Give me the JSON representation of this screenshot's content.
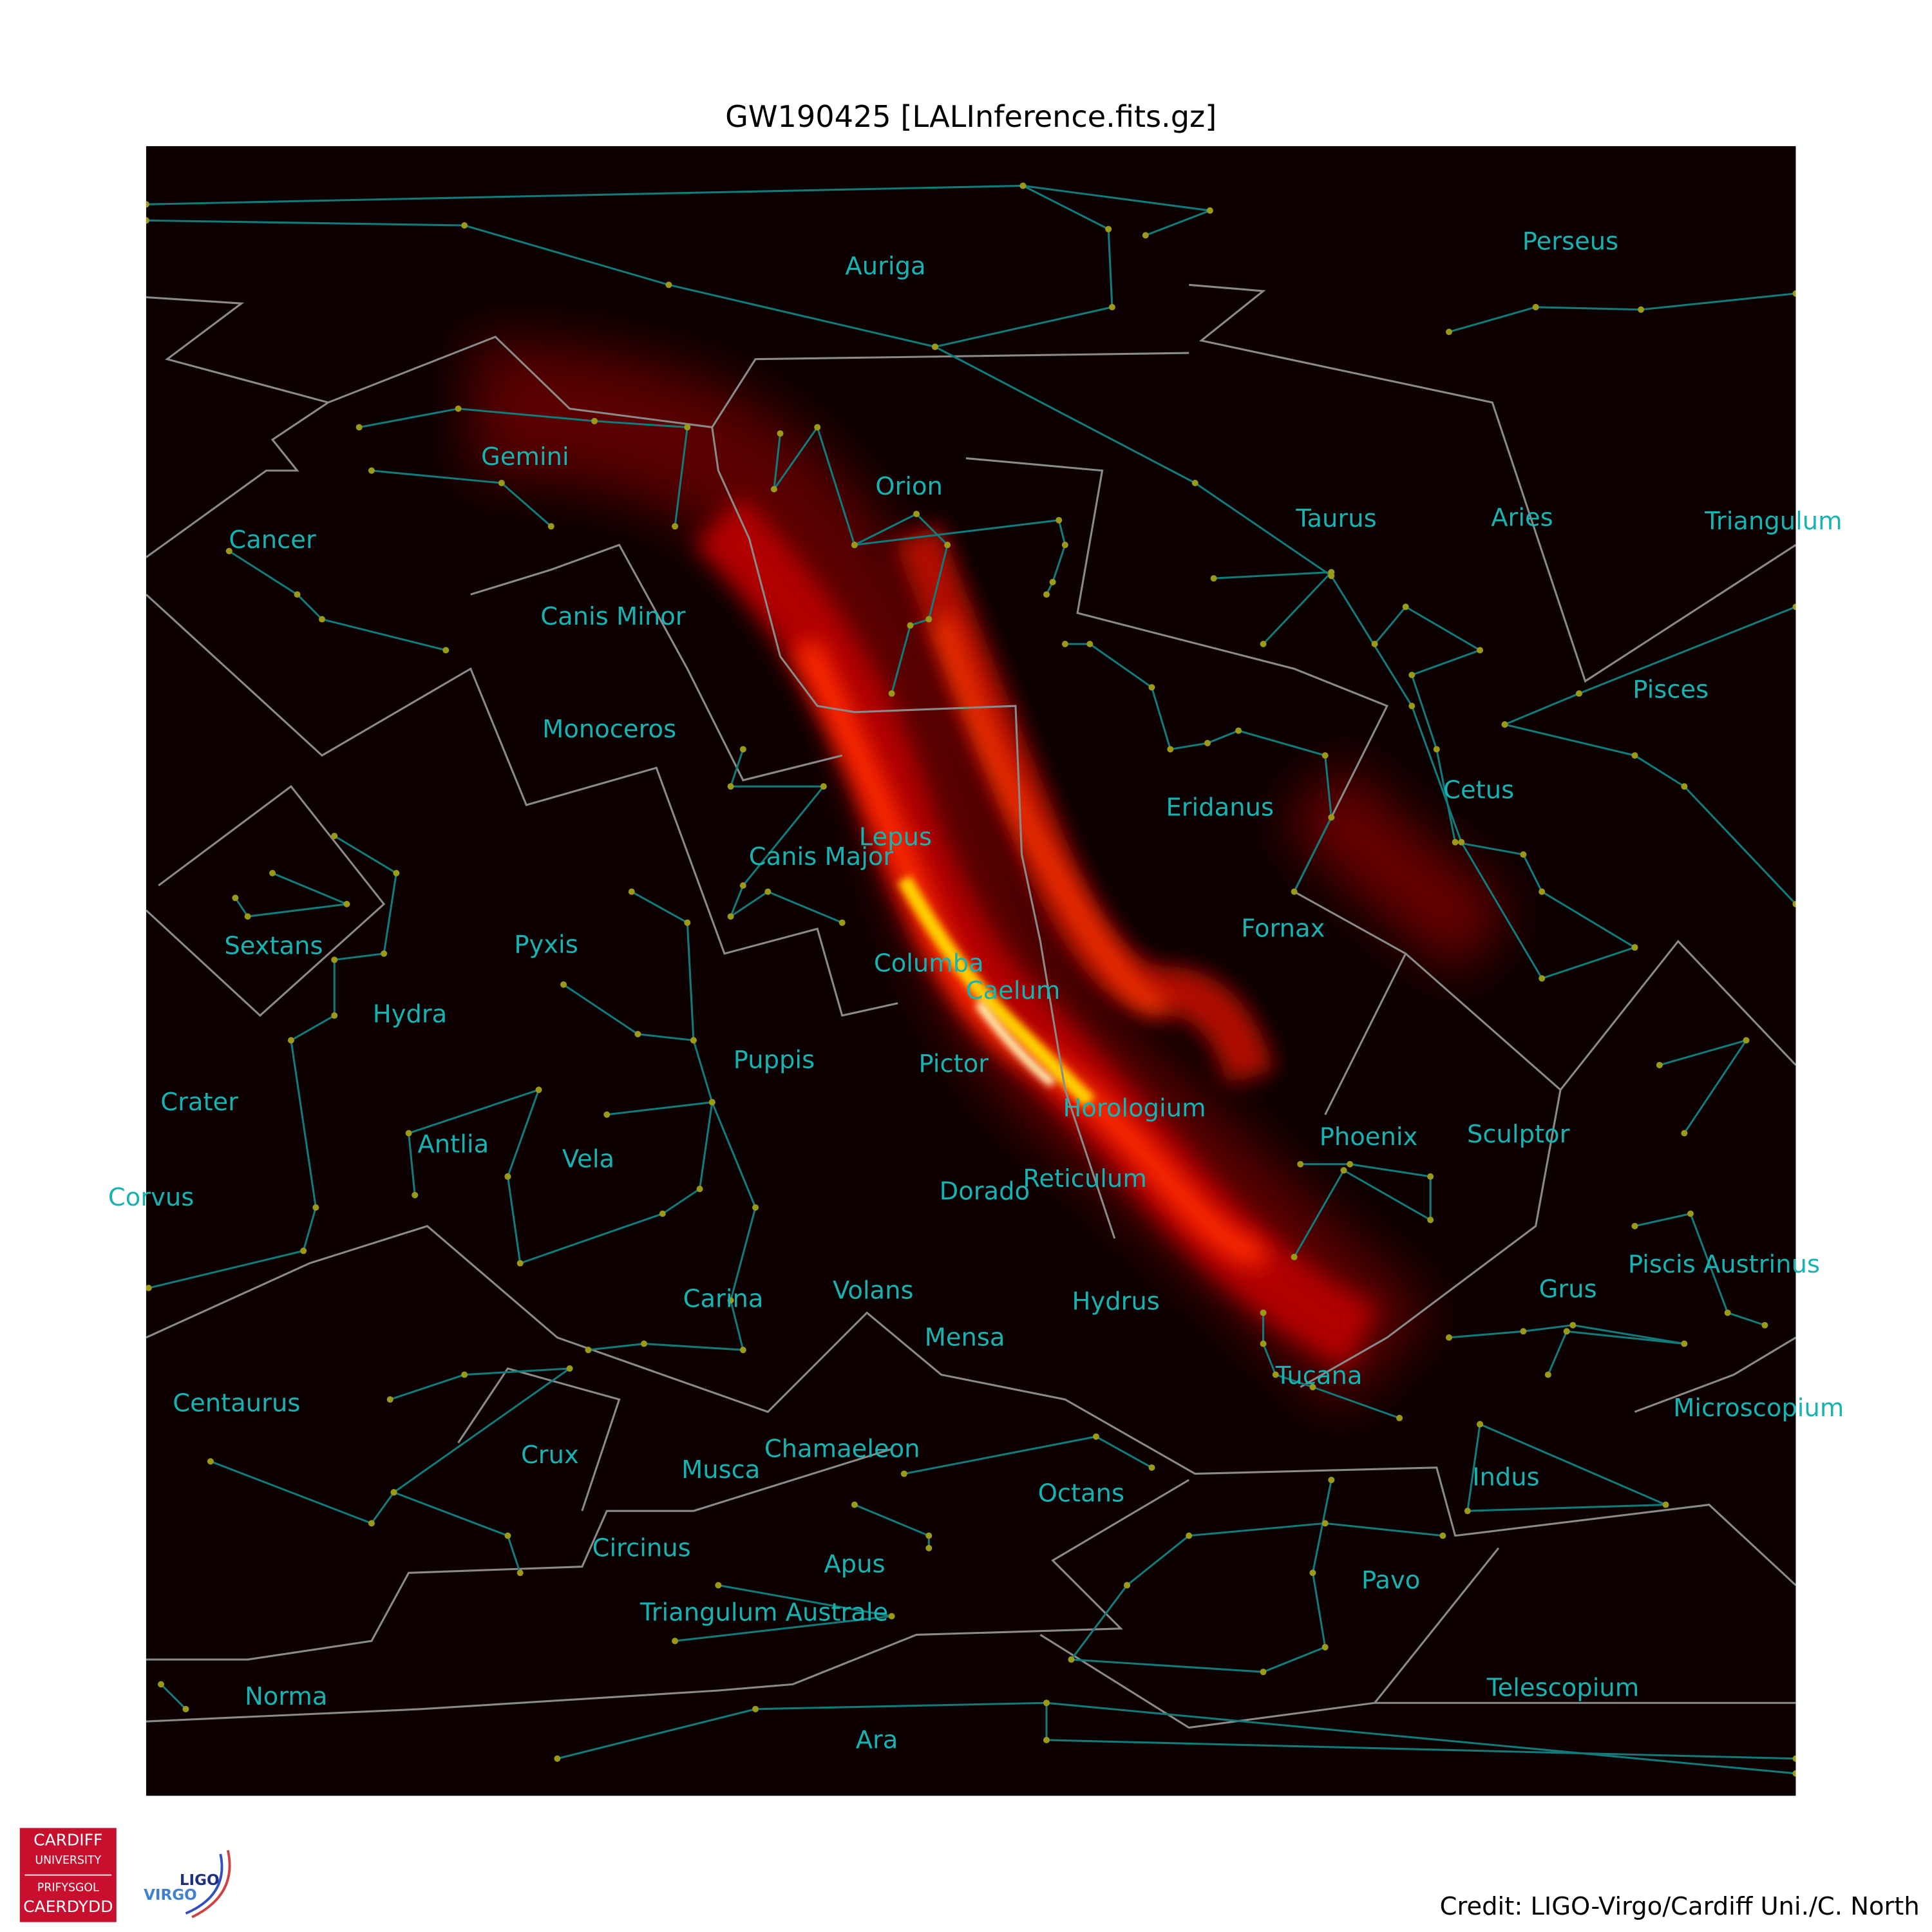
{
  "title": "GW190425 [LALInference.fits.gz]",
  "constellations": [
    "Auriga",
    "Perseus",
    "Gemini",
    "Orion",
    "Taurus",
    "Aries",
    "Triangulum",
    "Cancer",
    "Canis Minor",
    "Pisces",
    "Monoceros",
    "Cetus",
    "Eridanus",
    "Lepus",
    "Canis Major",
    "Fornax",
    "Sextans",
    "Pyxis",
    "Columba",
    "Caelum",
    "Hydra",
    "Puppis",
    "Pictor",
    "Crater",
    "Horologium",
    "Phoenix",
    "Sculptor",
    "Antlia",
    "Vela",
    "Corvus",
    "Dorado",
    "Reticulum",
    "Piscis Austrinus",
    "Grus",
    "Carina",
    "Volans",
    "Hydrus",
    "Mensa",
    "Tucana",
    "Centaurus",
    "Microscopium",
    "Chamaeleon",
    "Crux",
    "Musca",
    "Indus",
    "Octans",
    "Circinus",
    "Apus",
    "Pavo",
    "Triangulum Australe",
    "Telescopium",
    "Norma",
    "Ara"
  ],
  "credit": "Credit: LIGO-Virgo/Cardiff Uni./C. North",
  "logos": {
    "cardiff": [
      "CARDIFF",
      "UNIVERSITY",
      "PRIFYSGOL",
      "CAERDYDD"
    ],
    "ligo": "LIGO",
    "virgo": "VIRGO"
  }
}
